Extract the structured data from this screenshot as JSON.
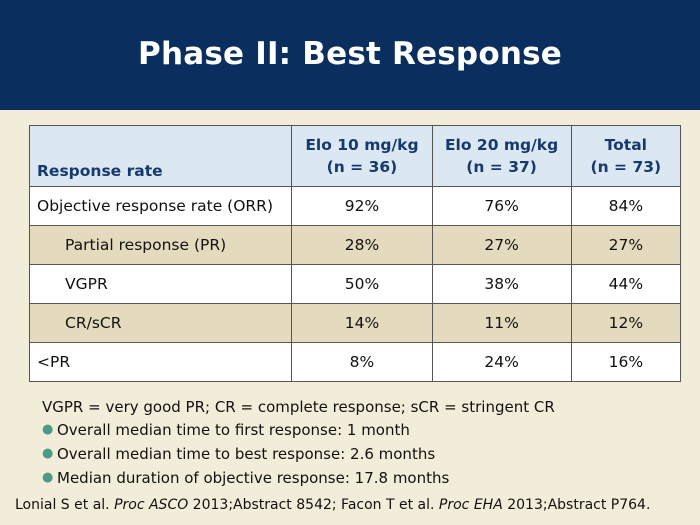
{
  "slide": {
    "title": "Phase II: Best Response"
  },
  "table": {
    "headers": {
      "label": "Response rate",
      "col1_line1": "Elo 10 mg/kg",
      "col1_line2": "(n = 36)",
      "col2_line1": "Elo 20 mg/kg",
      "col2_line2": "(n = 37)",
      "col3_line1": "Total",
      "col3_line2": "(n = 73)"
    },
    "rows": [
      {
        "label": "Objective response rate (ORR)",
        "v1": "92%",
        "v2": "76%",
        "v3": "84%"
      },
      {
        "label": "Partial response (PR)",
        "v1": "28%",
        "v2": "27%",
        "v3": "27%"
      },
      {
        "label": "VGPR",
        "v1": "50%",
        "v2": "38%",
        "v3": "44%"
      },
      {
        "label": "CR/sCR",
        "v1": "14%",
        "v2": "11%",
        "v3": "12%"
      },
      {
        "label": "<PR",
        "v1": "8%",
        "v2": "24%",
        "v3": "16%"
      }
    ]
  },
  "notes": {
    "abbreviations": "VGPR = very good PR; CR = complete response; sCR = stringent CR",
    "bullets": [
      "Overall median time to first response: 1 month",
      "Overall median time to best response: 2.6 months",
      "Median duration of objective response: 17.8 months"
    ]
  },
  "reference": {
    "part1": "Lonial S et al. ",
    "journal1": "Proc ASCO",
    "part2": " 2013;Abstract 8542; Facon T et al. ",
    "journal2": "Proc EHA",
    "part3": " 2013;Abstract P764."
  },
  "colors": {
    "header_bg": "#0a2f5f",
    "page_bg": "#f2edd9",
    "table_header_bg": "#dbe8f1",
    "row_tan": "#e4dbbf",
    "bullet": "#4a9c8a"
  }
}
